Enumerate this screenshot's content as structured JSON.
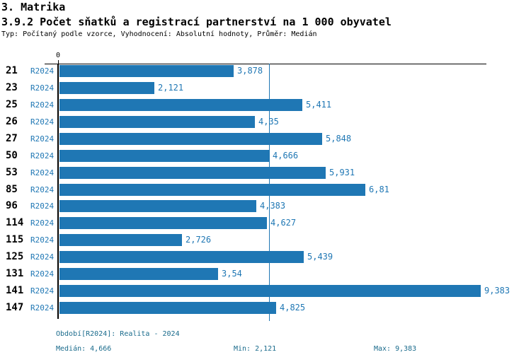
{
  "header": {
    "section_title": "3. Matrika",
    "chart_title": "3.9.2 Počet sňatků a registrací partnerství na 1 000 obyvatel",
    "subtitle": "Typ: Počítaný podle vzorce, Vyhodnocení: Absolutní hodnoty, Průměr: Medián"
  },
  "chart_data": {
    "type": "bar",
    "orientation": "horizontal",
    "title": "3.9.2 Počet sňatků a registrací partnerství na 1 000 obyvatel",
    "xlabel": "",
    "ylabel": "",
    "xlim": [
      0,
      9.5
    ],
    "x_tick_labels": [
      "0"
    ],
    "grid": false,
    "legend": "none",
    "series_label": "R2024",
    "categories": [
      "21",
      "23",
      "25",
      "26",
      "27",
      "50",
      "53",
      "85",
      "96",
      "114",
      "115",
      "125",
      "131",
      "141",
      "147"
    ],
    "values": [
      3.878,
      2.121,
      5.411,
      4.35,
      5.848,
      4.666,
      5.931,
      6.81,
      4.383,
      4.627,
      2.726,
      5.439,
      3.54,
      9.383,
      4.825
    ],
    "value_labels": [
      "3,878",
      "2,121",
      "5,411",
      "4,35",
      "5,848",
      "4,666",
      "5,931",
      "6,81",
      "4,383",
      "4,627",
      "2,726",
      "5,439",
      "3,54",
      "9,383",
      "4,825"
    ],
    "median_value": 4.666,
    "min_value": 2.121,
    "max_value": 9.383
  },
  "colors": {
    "bar": "#1f77b4",
    "value_text": "#1f77b4",
    "series_text": "#1f77b4",
    "median_line": "#1f77b4",
    "axis": "#000000",
    "footer_text": "#1a6b8c"
  },
  "footer": {
    "period": "Období[R2024]: Realita - 2024",
    "median": "Medián: 4,666",
    "min": "Min: 2,121",
    "max": "Max: 9,383"
  }
}
